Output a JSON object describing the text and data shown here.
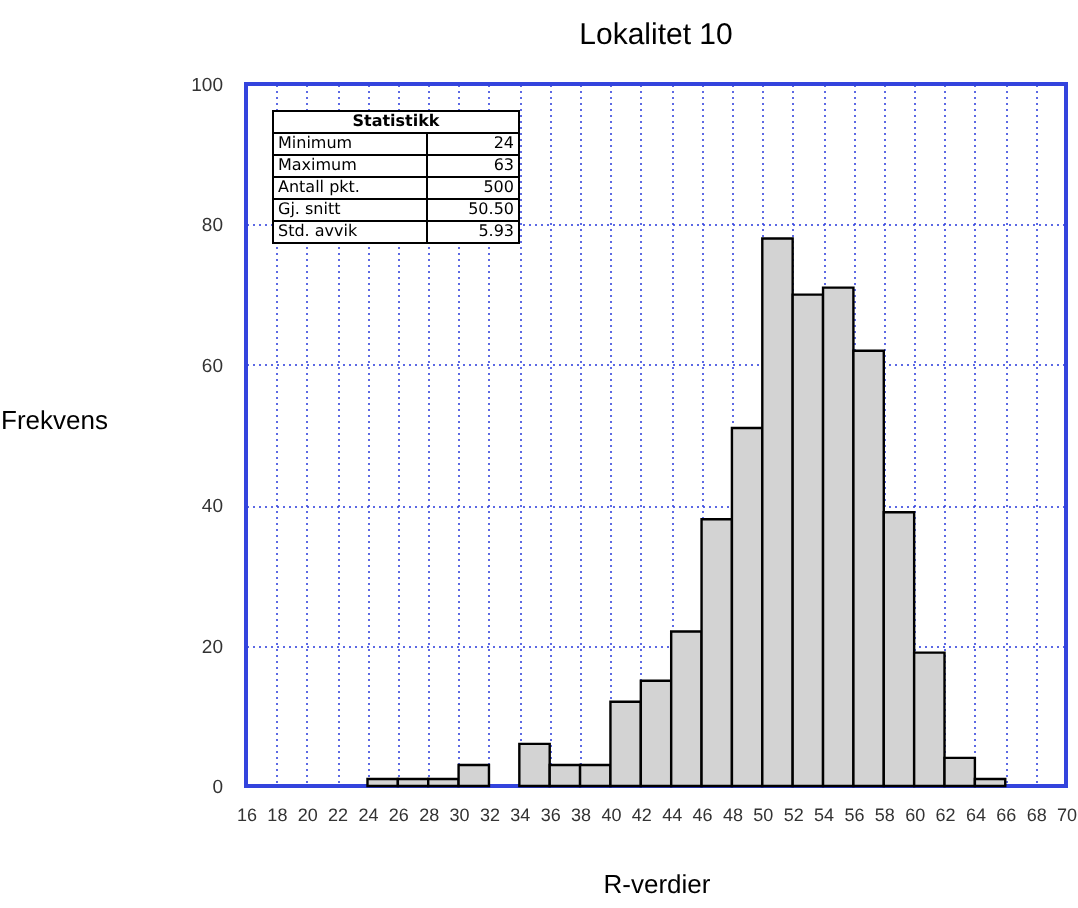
{
  "chart_data": {
    "type": "histogram",
    "title": "Lokalitet 10",
    "xlabel": "R-verdier",
    "ylabel": "Frekvens",
    "bins": [
      24,
      26,
      28,
      30,
      32,
      34,
      36,
      38,
      40,
      42,
      44,
      46,
      48,
      50,
      52,
      54,
      56,
      58,
      60,
      62,
      64,
      66
    ],
    "values": [
      1,
      1,
      1,
      3,
      0,
      6,
      3,
      3,
      12,
      15,
      22,
      38,
      51,
      78,
      70,
      71,
      62,
      39,
      19,
      4,
      1
    ],
    "color": "#d3d3d3",
    "xlim": [
      16,
      70
    ],
    "xticks": [
      16,
      18,
      20,
      22,
      24,
      26,
      28,
      30,
      32,
      34,
      36,
      38,
      40,
      42,
      44,
      46,
      48,
      50,
      52,
      54,
      56,
      58,
      60,
      62,
      64,
      66,
      68,
      70
    ],
    "ylim": [
      0,
      100
    ],
    "yticks": [
      0,
      20,
      40,
      60,
      80,
      100
    ],
    "grid": true,
    "annotations": [
      "Statistikk",
      "Minimum",
      "24",
      "Maximum",
      "63",
      "Antall pkt.",
      "500",
      "Gj. snitt",
      "50.50",
      "Std. avvik",
      "5.93"
    ]
  }
}
